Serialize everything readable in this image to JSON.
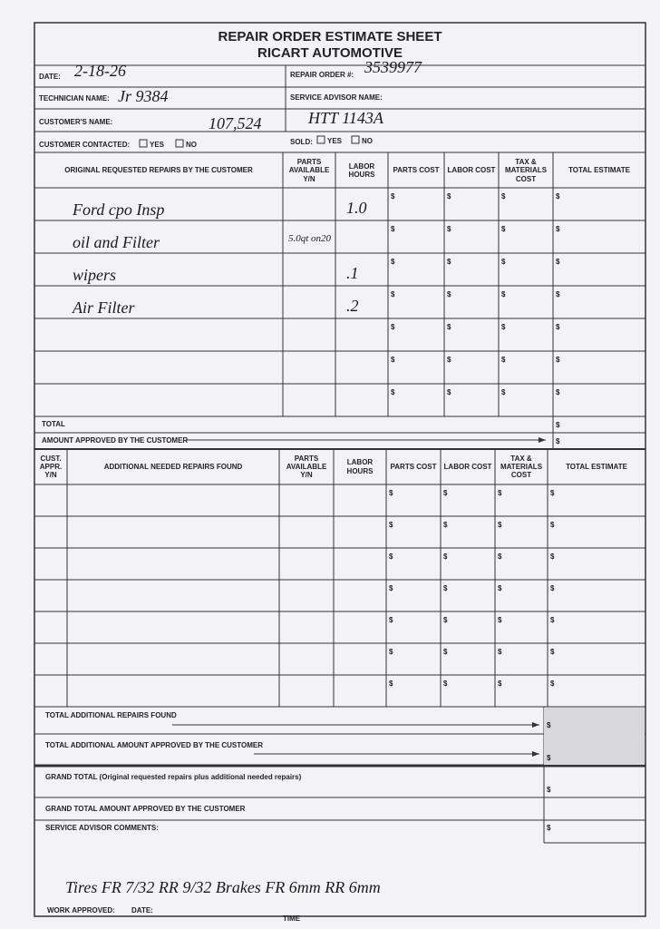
{
  "header": {
    "title": "REPAIR ORDER ESTIMATE SHEET",
    "subtitle": "RICART AUTOMOTIVE"
  },
  "fields": {
    "date": {
      "label": "DATE:",
      "value": "2-18-26"
    },
    "repair_order": {
      "label": "REPAIR ORDER #:",
      "value": "3539977"
    },
    "technician": {
      "label": "TECHNICIAN NAME:",
      "value": "Jr 9384"
    },
    "service_advisor": {
      "label": "SERVICE ADVISOR NAME:"
    },
    "customer": {
      "label": "CUSTOMER'S NAME:",
      "value": "107,524"
    },
    "vehicle": "HTT 1143A",
    "customer_contacted": {
      "label": "CUSTOMER CONTACTED:",
      "yes": "YES",
      "no": "NO"
    },
    "sold": {
      "label": "SOLD:",
      "yes": "YES",
      "no": "NO"
    }
  },
  "currency": "$",
  "original": {
    "headers": [
      "ORIGINAL REQUESTED REPAIRS BY THE CUSTOMER",
      "PARTS AVAILABLE Y/N",
      "LABOR HOURS",
      "PARTS COST",
      "LABOR COST",
      "TAX & MATERIALS COST",
      "TOTAL ESTIMATE"
    ],
    "rows": [
      {
        "repair": "Ford cpo Insp",
        "labor_hours": "1.0"
      },
      {
        "repair": "oil and Filter",
        "parts": "5.0qt on20"
      },
      {
        "repair": "wipers",
        "labor_hours": ".1"
      },
      {
        "repair": "Air Filter",
        "labor_hours": ".2"
      }
    ],
    "total": "TOTAL",
    "approved": "AMOUNT APPROVED BY THE CUSTOMER"
  },
  "additional": {
    "headers": [
      "CUST. APPR. Y/N",
      "ADDITIONAL NEEDED REPAIRS FOUND",
      "PARTS AVAILABLE Y/N",
      "LABOR HOURS",
      "PARTS COST",
      "LABOR COST",
      "TAX & MATERIALS COST",
      "TOTAL ESTIMATE"
    ]
  },
  "summary": {
    "total_additional": "TOTAL ADDITIONAL REPAIRS FOUND",
    "total_additional_approved": "TOTAL ADDITIONAL AMOUNT APPROVED BY THE CUSTOMER",
    "grand_total": "GRAND TOTAL (Original requested repairs plus additional needed repairs)",
    "grand_total_approved": "GRAND TOTAL AMOUNT APPROVED BY THE CUSTOMER",
    "comments": "SERVICE ADVISOR COMMENTS:",
    "comment_text": "Tires FR 7/32   RR 9/32      Brakes FR 6mm   RR 6mm"
  },
  "footer": {
    "work_approved": "WORK APPROVED:",
    "date": "DATE:",
    "time": "TIME"
  }
}
